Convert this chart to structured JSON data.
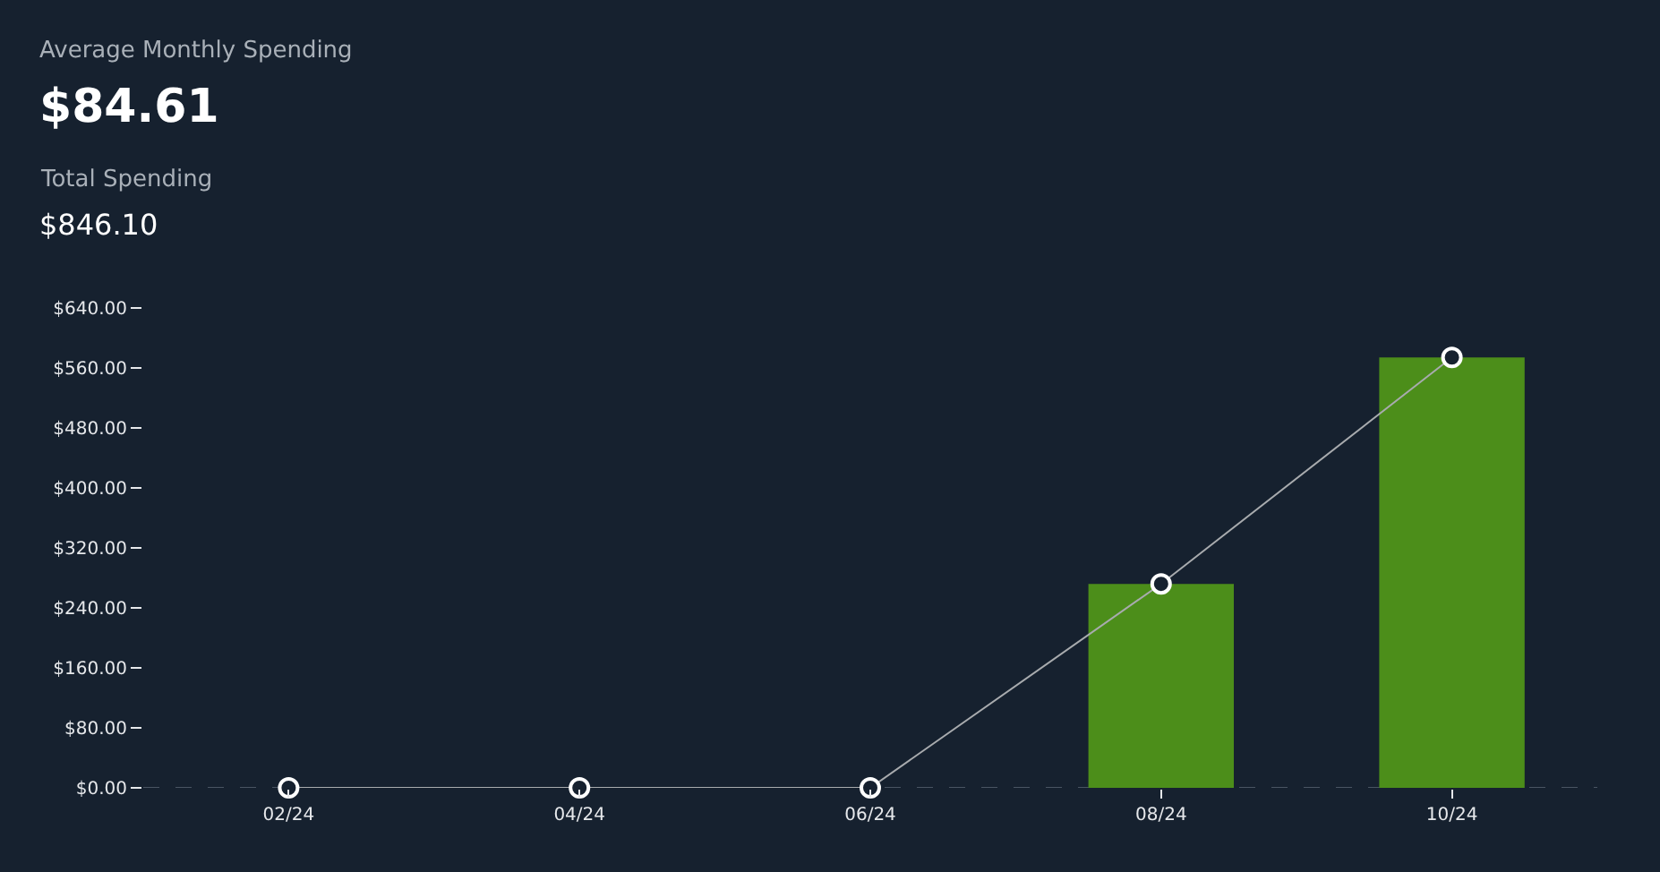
{
  "chart_data": {
    "type": "bar",
    "title": "Average Monthly Spending",
    "subtitle": "$84.61",
    "annotations": [
      "Total Spending",
      "$846.10"
    ],
    "categories": [
      "02/24",
      "04/24",
      "06/24",
      "08/24",
      "10/24"
    ],
    "series": [
      {
        "color": "#4c8e1a",
        "values": [
          0,
          0,
          0,
          272,
          574
        ]
      },
      {
        "type": "line",
        "color": "#a8abae",
        "values": [
          0,
          0,
          0,
          272,
          574
        ],
        "marker": "circle"
      }
    ],
    "ylim": [
      0,
      640
    ],
    "yticks": [
      {
        "value": 0,
        "label": "$0.00"
      },
      {
        "value": 80,
        "label": "$80.00"
      },
      {
        "value": 160,
        "label": "$160.00"
      },
      {
        "value": 240,
        "label": "$240.00"
      },
      {
        "value": 320,
        "label": "$320.00"
      },
      {
        "value": 400,
        "label": "$400.00"
      },
      {
        "value": 480,
        "label": "$480.00"
      },
      {
        "value": 560,
        "label": "$560.00"
      },
      {
        "value": 640,
        "label": "$640.00"
      }
    ],
    "grid": false
  }
}
